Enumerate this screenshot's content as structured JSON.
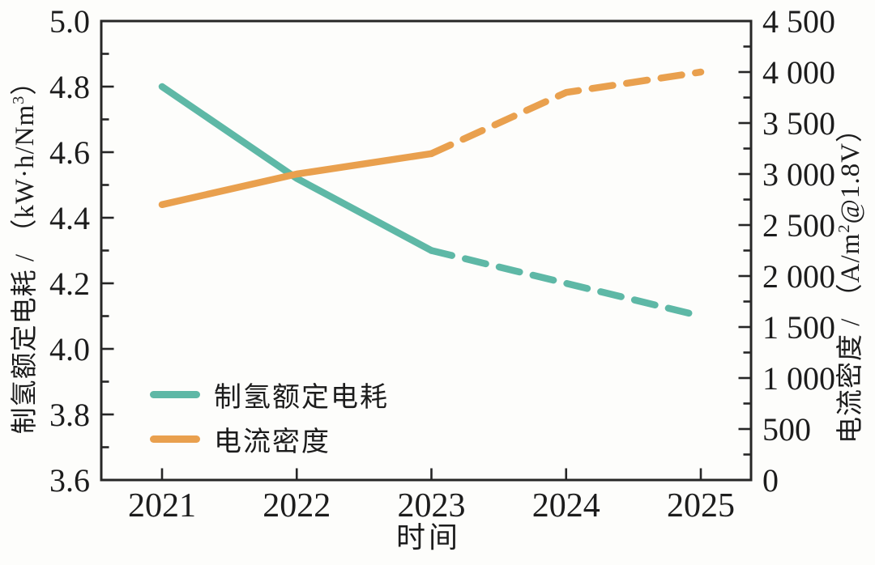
{
  "figure": {
    "background": "#fdfdfb",
    "axis_color": "#262626",
    "text_color": "#1c1c1c"
  },
  "chart_data": {
    "type": "line",
    "x": [
      2021,
      2022,
      2023,
      2024,
      2025
    ],
    "x_tick_labels": [
      "2021",
      "2022",
      "2023",
      "2024",
      "2025"
    ],
    "xlabel": "时间",
    "grid": false,
    "left_axis": {
      "label": "制氢额定电耗 / （kW·h/Nm³）",
      "label_parts": {
        "prefix": "制氢额定电耗 / （kW·h/Nm",
        "sup": "3",
        "suffix": "）"
      },
      "range": [
        3.6,
        5.0
      ],
      "major_step": 0.2,
      "minor_step": 0.1,
      "tick_labels": [
        "3.6",
        "3.8",
        "4.0",
        "4.2",
        "4.4",
        "4.6",
        "4.8",
        "5.0"
      ]
    },
    "right_axis": {
      "label": "电流密度 / （A/m²@1.8V）",
      "label_parts": {
        "prefix": "电流密度 / （A/m",
        "sup": "2",
        "suffix": "@1.8V）"
      },
      "range": [
        0,
        4500
      ],
      "major_step": 500,
      "minor_step": 250,
      "tick_labels": [
        "0",
        "500",
        "1 000",
        "1 500",
        "2 000",
        "2 500",
        "3 000",
        "3 500",
        "4 000",
        "4 500"
      ]
    },
    "series": [
      {
        "name": "制氢额定电耗",
        "axis": "left",
        "color": "#5eb8a6",
        "values": [
          4.8,
          4.52,
          4.3,
          4.2,
          4.1
        ],
        "solid_until_x": 2023,
        "line_style": "solid then dashed after 2023"
      },
      {
        "name": "电流密度",
        "axis": "right",
        "color": "#e9a04e",
        "values": [
          2700,
          3000,
          3200,
          3800,
          4000
        ],
        "solid_until_x": 2023,
        "line_style": "solid then dashed after 2023"
      }
    ],
    "legend": {
      "position": "lower-left-inside",
      "items": [
        {
          "label": "制氢额定电耗",
          "color": "#5eb8a6"
        },
        {
          "label": "电流密度",
          "color": "#e9a04e"
        }
      ]
    }
  }
}
